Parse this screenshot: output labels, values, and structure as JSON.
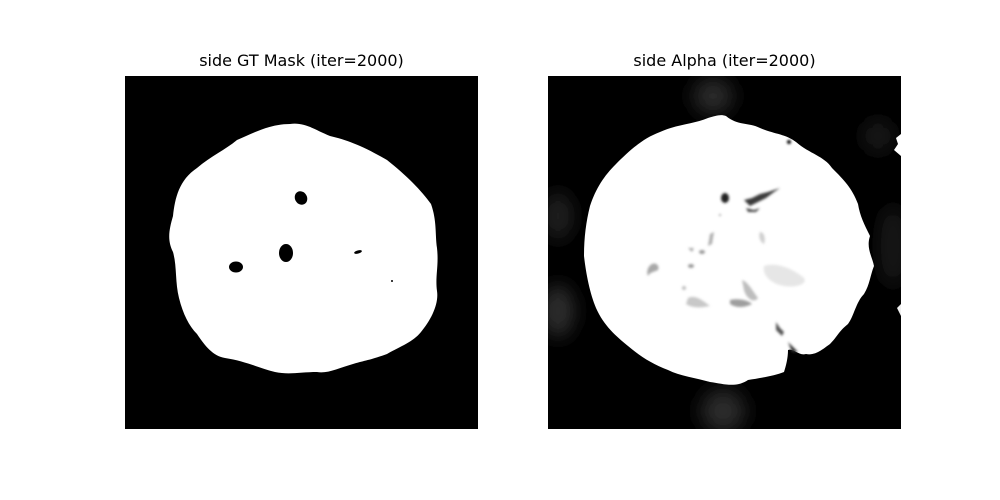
{
  "figure": {
    "panels": [
      {
        "title": "side GT Mask (iter=2000)"
      },
      {
        "title": "side Alpha (iter=2000)"
      }
    ]
  },
  "colors": {
    "background": "#ffffff",
    "mask_foreground": "#ffffff",
    "mask_background": "#000000",
    "alpha_soft_gray": "#d9d9d9"
  }
}
